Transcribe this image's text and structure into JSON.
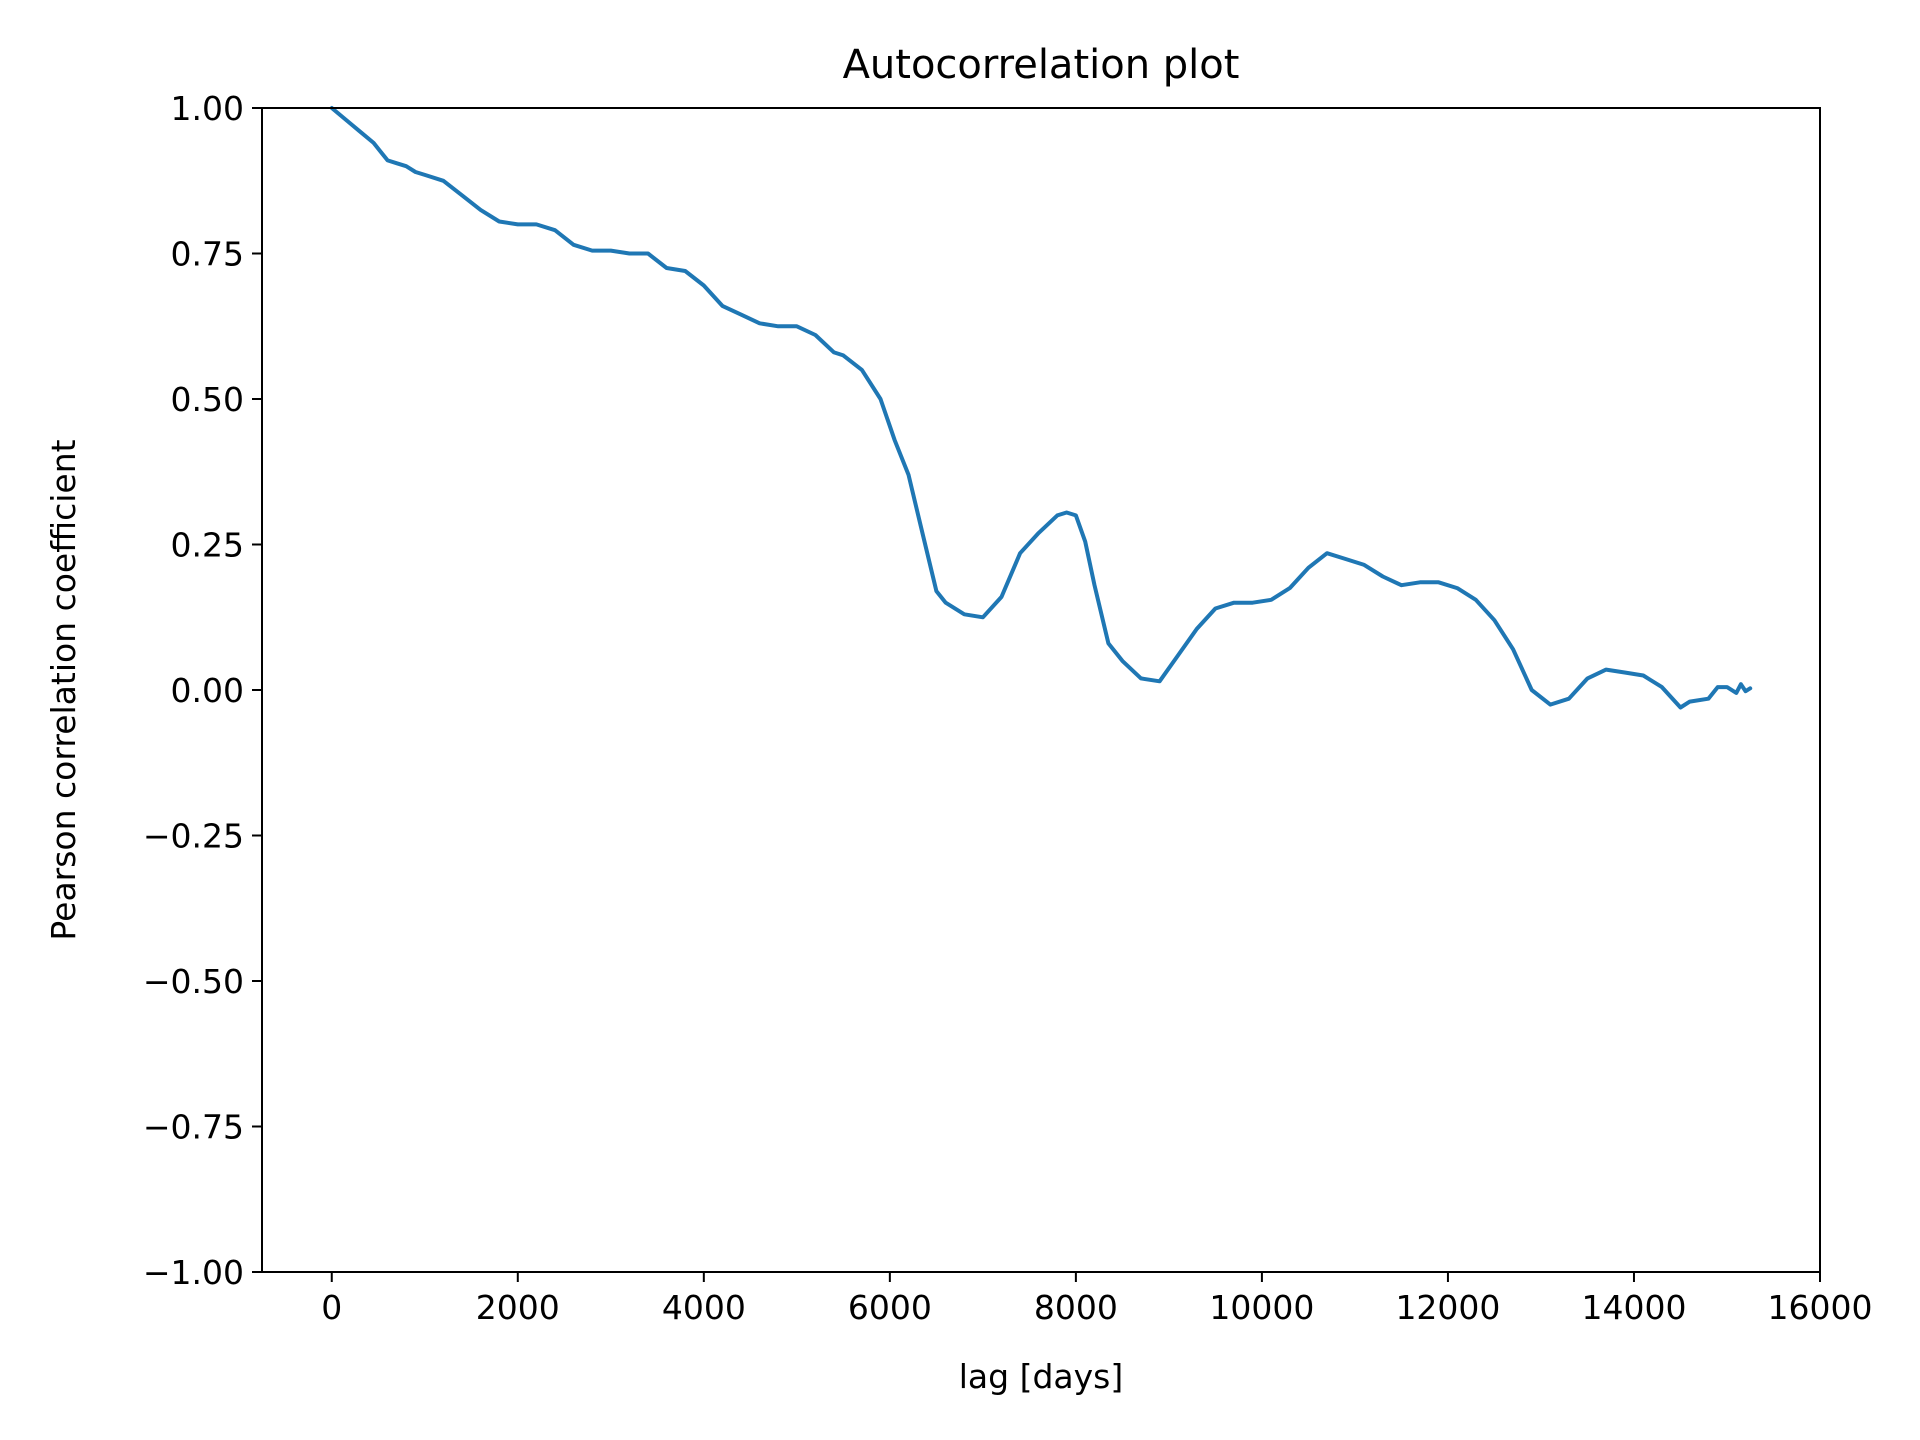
{
  "chart_data": {
    "type": "line",
    "title": "Autocorrelation plot",
    "xlabel": "lag [days]",
    "ylabel": "Pearson correlation coefficient",
    "xlim": [
      -750,
      16000
    ],
    "ylim": [
      -1.0,
      1.0
    ],
    "xticks": [
      0,
      2000,
      4000,
      6000,
      8000,
      10000,
      12000,
      14000,
      16000
    ],
    "xtick_labels": [
      "0",
      "2000",
      "4000",
      "6000",
      "8000",
      "10000",
      "12000",
      "14000",
      "16000"
    ],
    "yticks": [
      -1.0,
      -0.75,
      -0.5,
      -0.25,
      0.0,
      0.25,
      0.5,
      0.75,
      1.0
    ],
    "ytick_labels": [
      "−1.00",
      "−0.75",
      "−0.50",
      "−0.25",
      "0.00",
      "0.25",
      "0.50",
      "0.75",
      "1.00"
    ],
    "grid": false,
    "line_color": "#1f77b4",
    "series": [
      {
        "x": [
          0,
          150,
          300,
          450,
          600,
          700,
          800,
          900,
          1000,
          1200,
          1400,
          1600,
          1800,
          2000,
          2200,
          2400,
          2600,
          2800,
          3000,
          3200,
          3400,
          3600,
          3800,
          4000,
          4200,
          4400,
          4600,
          4800,
          5000,
          5200,
          5400,
          5500,
          5700,
          5900,
          6050,
          6200,
          6350,
          6500,
          6600,
          6800,
          7000,
          7200,
          7400,
          7600,
          7800,
          7900,
          8000,
          8100,
          8200,
          8350,
          8500,
          8700,
          8900,
          9100,
          9300,
          9500,
          9700,
          9900,
          10100,
          10300,
          10500,
          10700,
          10900,
          11100,
          11300,
          11500,
          11700,
          11900,
          12100,
          12300,
          12500,
          12700,
          12900,
          13100,
          13300,
          13500,
          13700,
          13900,
          14100,
          14300,
          14500,
          14600,
          14800,
          14900,
          15000,
          15100,
          15150,
          15200,
          15250
        ],
        "y": [
          1.0,
          0.98,
          0.96,
          0.94,
          0.91,
          0.905,
          0.9,
          0.89,
          0.885,
          0.875,
          0.85,
          0.825,
          0.805,
          0.8,
          0.8,
          0.79,
          0.765,
          0.755,
          0.755,
          0.75,
          0.75,
          0.725,
          0.72,
          0.695,
          0.66,
          0.645,
          0.63,
          0.625,
          0.625,
          0.61,
          0.58,
          0.575,
          0.55,
          0.5,
          0.43,
          0.37,
          0.27,
          0.17,
          0.15,
          0.13,
          0.125,
          0.16,
          0.235,
          0.27,
          0.3,
          0.305,
          0.3,
          0.255,
          0.18,
          0.08,
          0.05,
          0.02,
          0.015,
          0.06,
          0.105,
          0.14,
          0.15,
          0.15,
          0.155,
          0.175,
          0.21,
          0.235,
          0.225,
          0.215,
          0.195,
          0.18,
          0.185,
          0.185,
          0.175,
          0.155,
          0.12,
          0.07,
          0.0,
          -0.025,
          -0.015,
          0.02,
          0.035,
          0.03,
          0.025,
          0.005,
          -0.03,
          -0.02,
          -0.015,
          0.005,
          0.005,
          -0.005,
          0.01,
          -0.002,
          0.003
        ]
      }
    ]
  }
}
